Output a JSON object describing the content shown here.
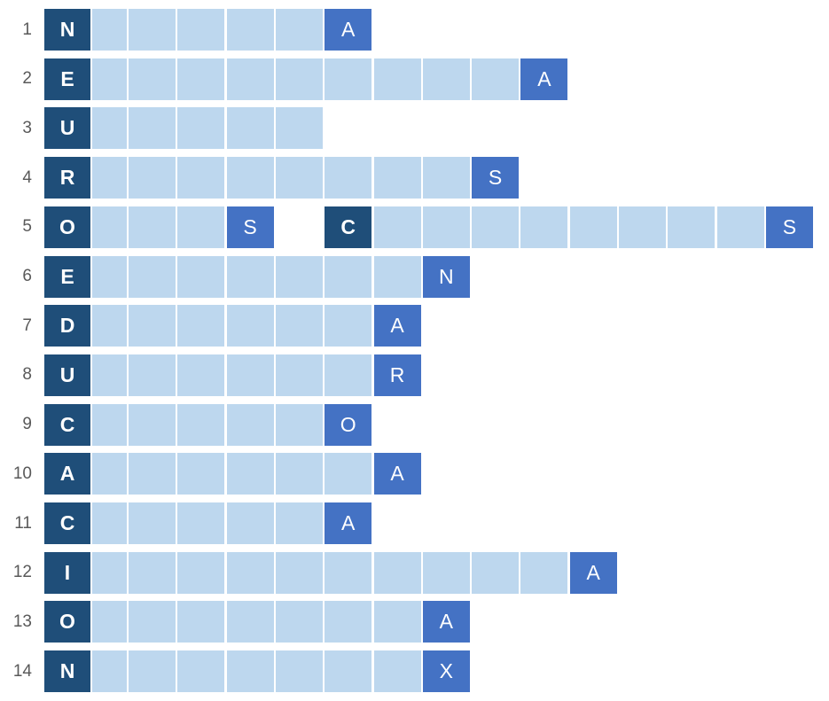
{
  "rows": [
    {
      "number": 1,
      "key": "N",
      "letters": [
        "A"
      ]
    },
    {
      "number": 2,
      "key": "E",
      "letters": [
        "A"
      ]
    },
    {
      "number": 3,
      "key": "U",
      "letters": []
    },
    {
      "number": 4,
      "key": "R",
      "letters": [
        "S"
      ]
    },
    {
      "number": 5,
      "key": "O",
      "letters": [
        "S",
        "C",
        "S"
      ]
    },
    {
      "number": 6,
      "key": "E",
      "letters": [
        "N"
      ]
    },
    {
      "number": 7,
      "key": "D",
      "letters": [
        "A"
      ]
    },
    {
      "number": 8,
      "key": "U",
      "letters": [
        "R"
      ]
    },
    {
      "number": 9,
      "key": "C",
      "letters": [
        "O"
      ]
    },
    {
      "number": 10,
      "key": "A",
      "letters": [
        "A"
      ]
    },
    {
      "number": 11,
      "key": "C",
      "letters": [
        "A"
      ]
    },
    {
      "number": 12,
      "key": "I",
      "letters": [
        "A"
      ]
    },
    {
      "number": 13,
      "key": "O",
      "letters": [
        "A"
      ]
    },
    {
      "number": 14,
      "key": "N",
      "letters": [
        "X"
      ]
    }
  ]
}
